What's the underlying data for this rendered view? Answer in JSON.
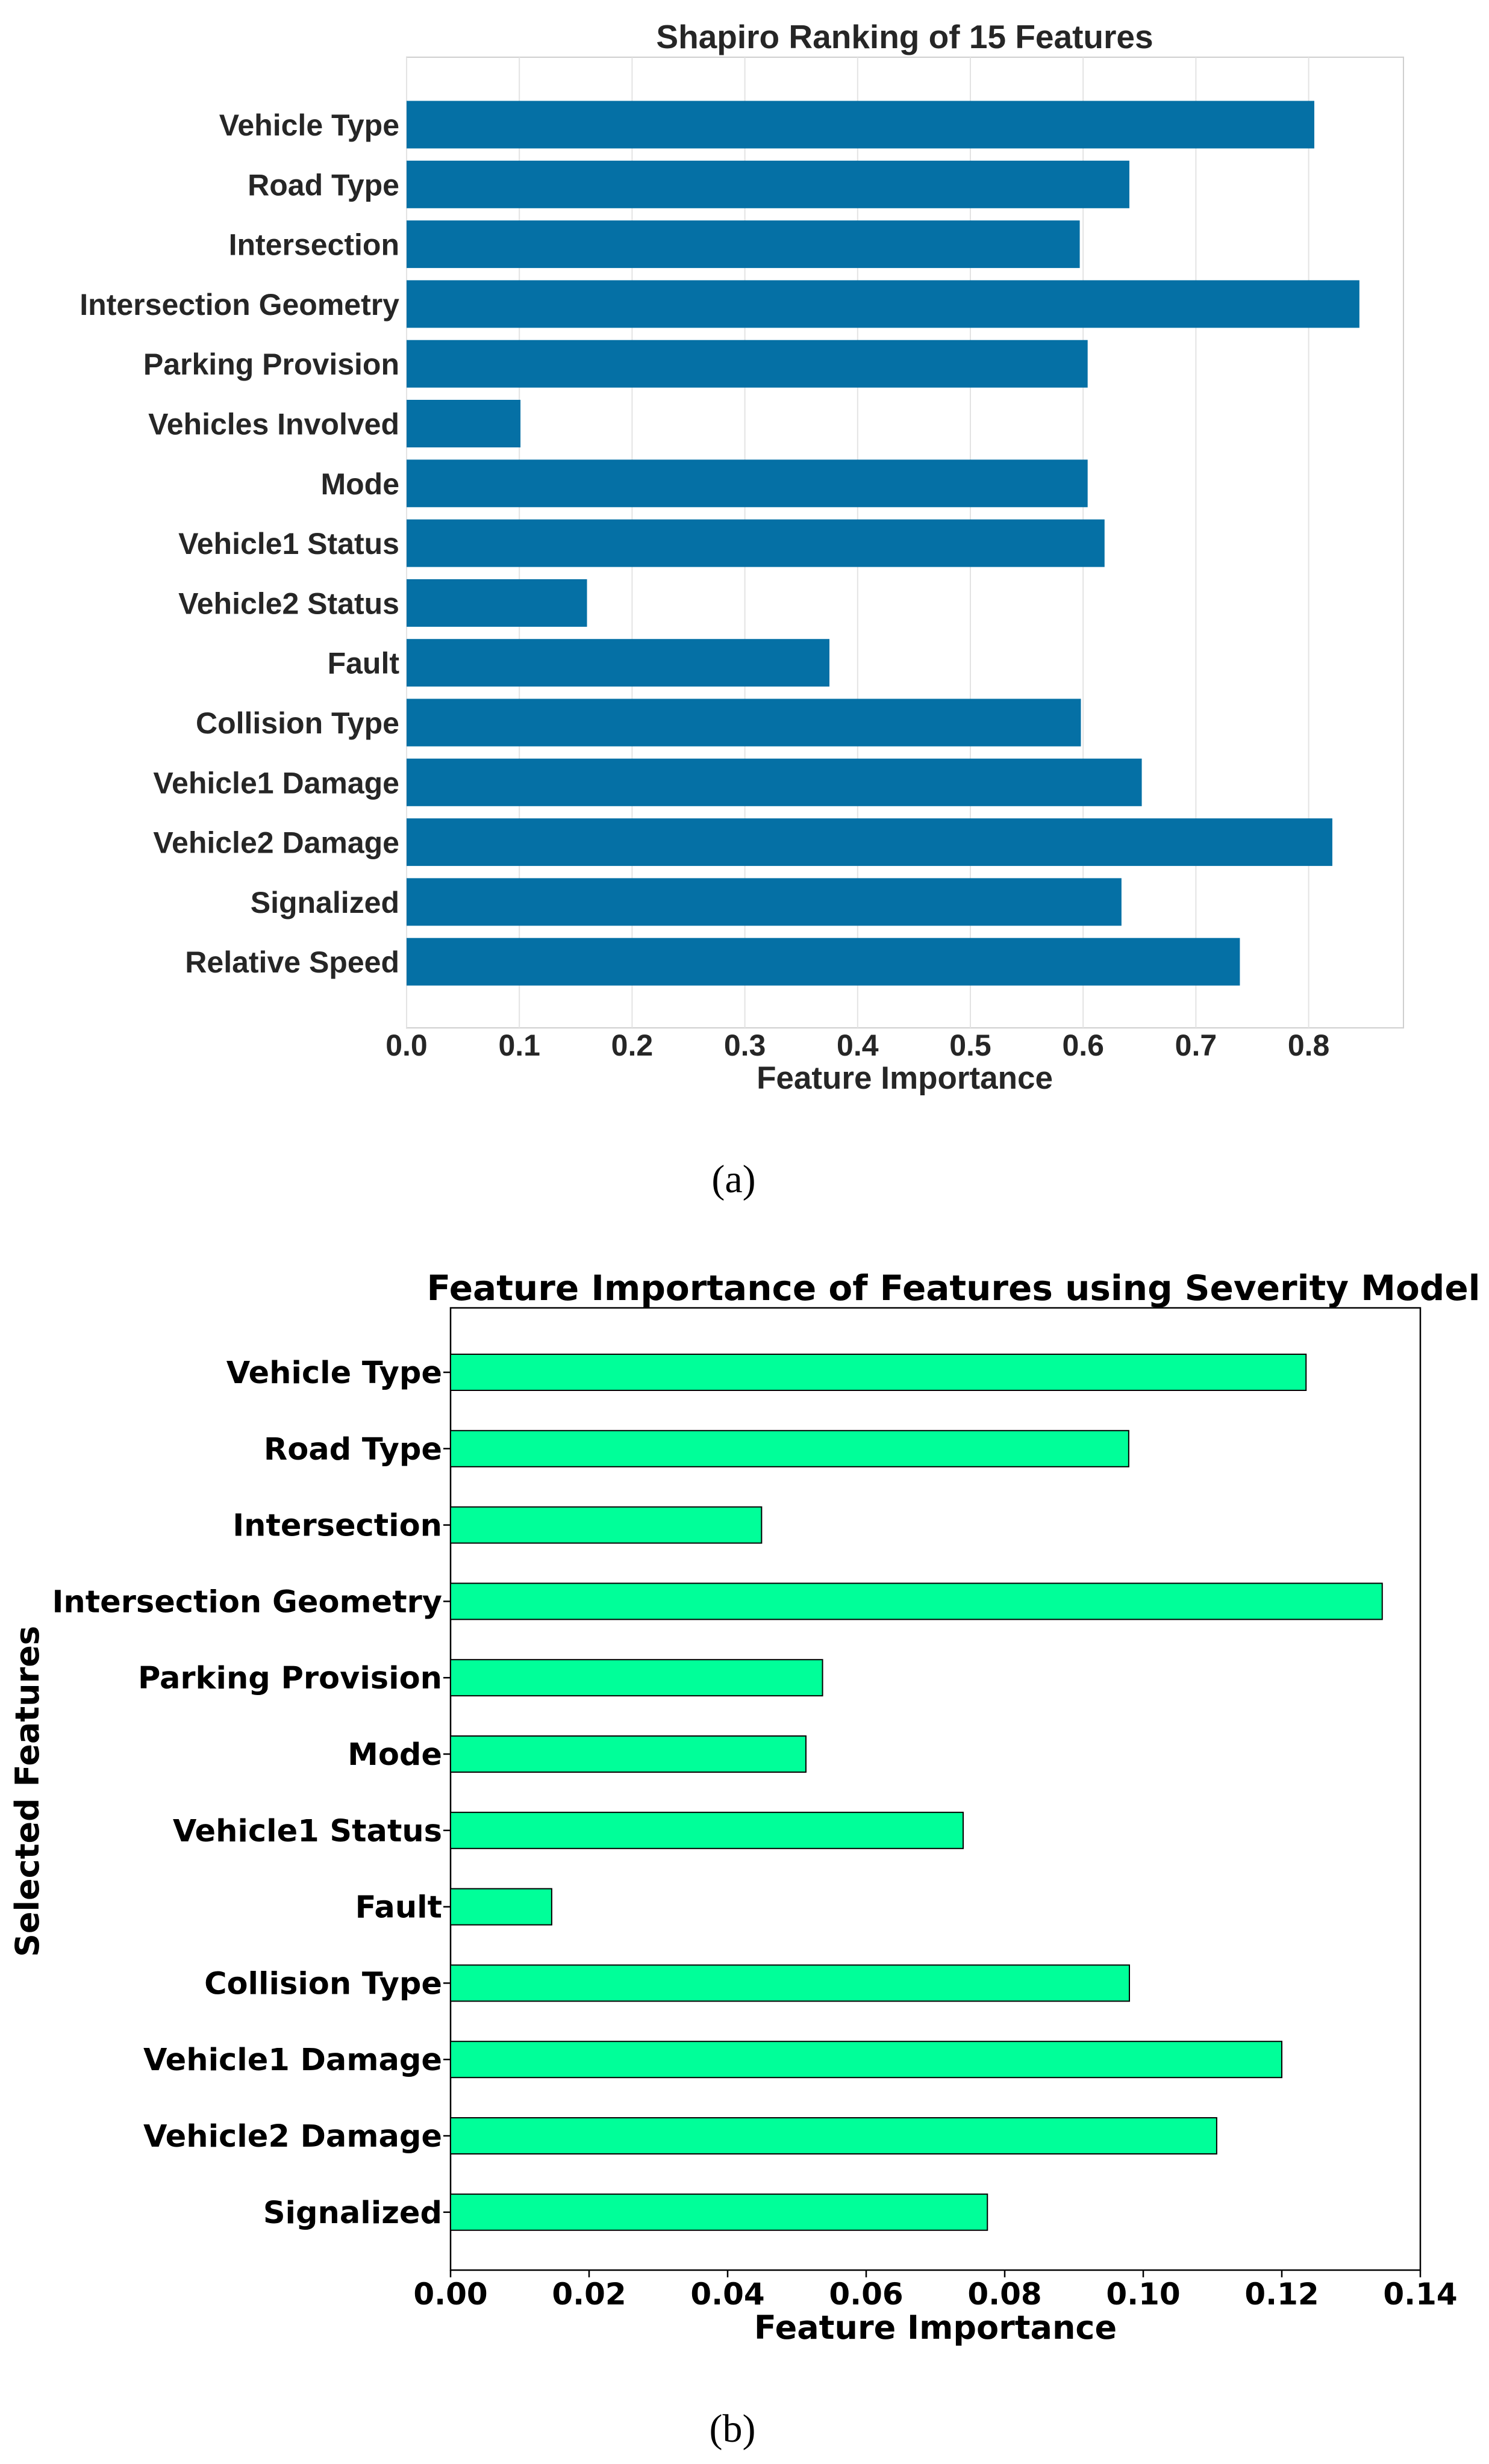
{
  "chart_data": [
    {
      "type": "bar",
      "orientation": "horizontal",
      "title": "Shapiro Ranking of 15 Features",
      "xlabel": "Feature Importance",
      "ylabel": "",
      "xlim": [
        0,
        0.88
      ],
      "xticks": [
        "0.0",
        "0.1",
        "0.2",
        "0.3",
        "0.4",
        "0.5",
        "0.6",
        "0.7",
        "0.8"
      ],
      "grid": true,
      "bar_color": "#0570a5",
      "categories": [
        "Vehicle Type",
        "Road Type",
        "Intersection",
        "Intersection Geometry",
        "Parking Provision",
        "Vehicles Involved",
        "Mode",
        "Vehicle1 Status",
        "Vehicle2 Status",
        "Fault",
        "Collision Type",
        "Vehicle1 Damage",
        "Vehicle2 Damage",
        "Signalized",
        "Relative Speed"
      ],
      "values": [
        0.805,
        0.641,
        0.597,
        0.845,
        0.604,
        0.101,
        0.604,
        0.619,
        0.16,
        0.375,
        0.598,
        0.652,
        0.821,
        0.634,
        0.739
      ],
      "caption": "(a)"
    },
    {
      "type": "bar",
      "orientation": "horizontal",
      "title": "Feature Importance of Features using Severity Model",
      "xlabel": "Feature Importance",
      "ylabel": "Selected Features",
      "xlim": [
        0,
        0.14
      ],
      "xticks": [
        "0.00",
        "0.02",
        "0.04",
        "0.06",
        "0.08",
        "0.10",
        "0.12",
        "0.14"
      ],
      "grid": false,
      "bar_color": "#00ff99",
      "categories": [
        "Vehicle Type",
        "Road Type",
        "Intersection",
        "Intersection Geometry",
        "Parking  Provision",
        "Mode",
        "Vehicle1 Status",
        "Fault",
        "Collision Type",
        "Vehicle1 Damage",
        "Vehicle2 Damage",
        "Signalized"
      ],
      "values": [
        0.1235,
        0.0979,
        0.0449,
        0.1345,
        0.0537,
        0.0513,
        0.074,
        0.0146,
        0.098,
        0.12,
        0.1106,
        0.0775
      ],
      "caption": "(b)"
    }
  ]
}
